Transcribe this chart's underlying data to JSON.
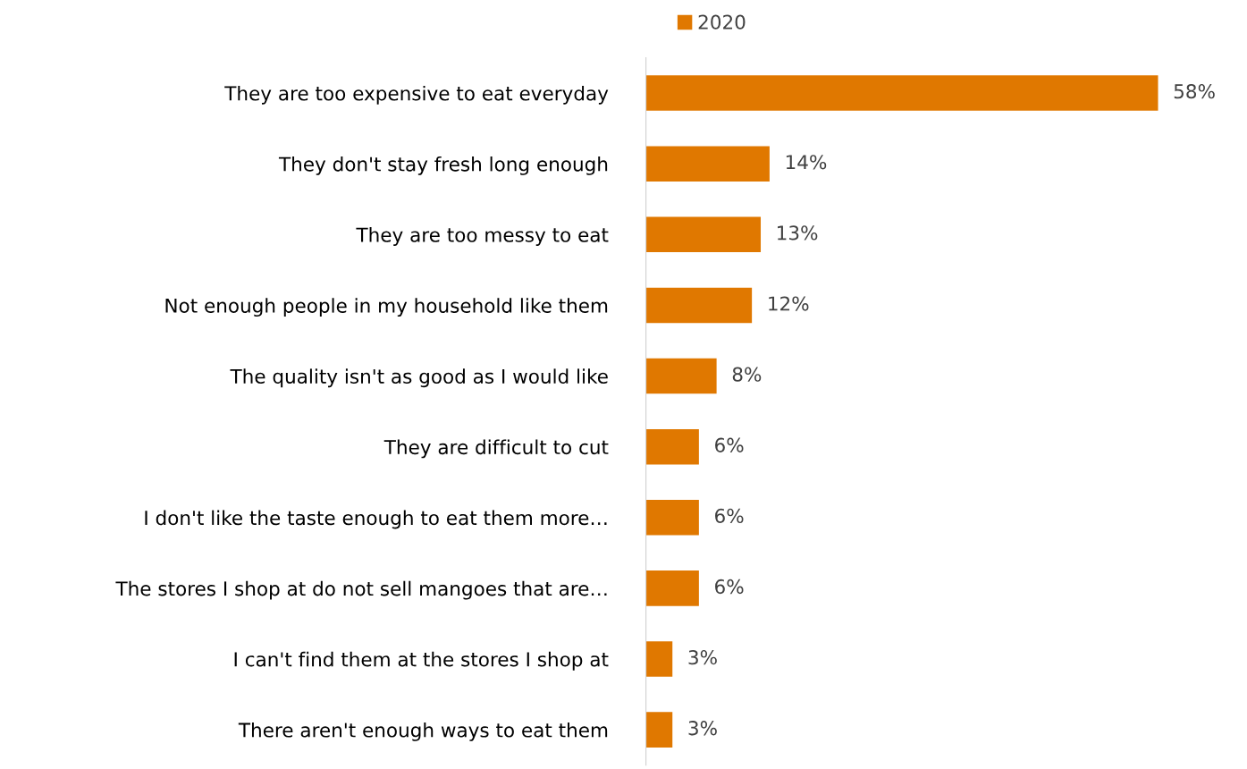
{
  "chart_data": {
    "type": "bar",
    "orientation": "horizontal",
    "categories": [
      "They are too expensive to eat everyday",
      "They don't stay fresh long enough",
      "They are too messy to eat",
      "Not enough people in my household like them",
      "The quality isn't as good as I would like",
      "They are difficult to cut",
      "I don't like the taste enough to eat them more…",
      "The stores I shop at do not sell mangoes that are…",
      "I can't find them at the stores I shop at",
      "There aren't enough ways to eat them"
    ],
    "series": [
      {
        "name": "2020",
        "color": "#e07800",
        "values": [
          58,
          14,
          13,
          12,
          8,
          6,
          6,
          6,
          3,
          3
        ],
        "value_labels": [
          "58%",
          "14%",
          "13%",
          "12%",
          "8%",
          "6%",
          "6%",
          "6%",
          "3%",
          "3%"
        ]
      }
    ],
    "legend": "top",
    "grid": false
  }
}
